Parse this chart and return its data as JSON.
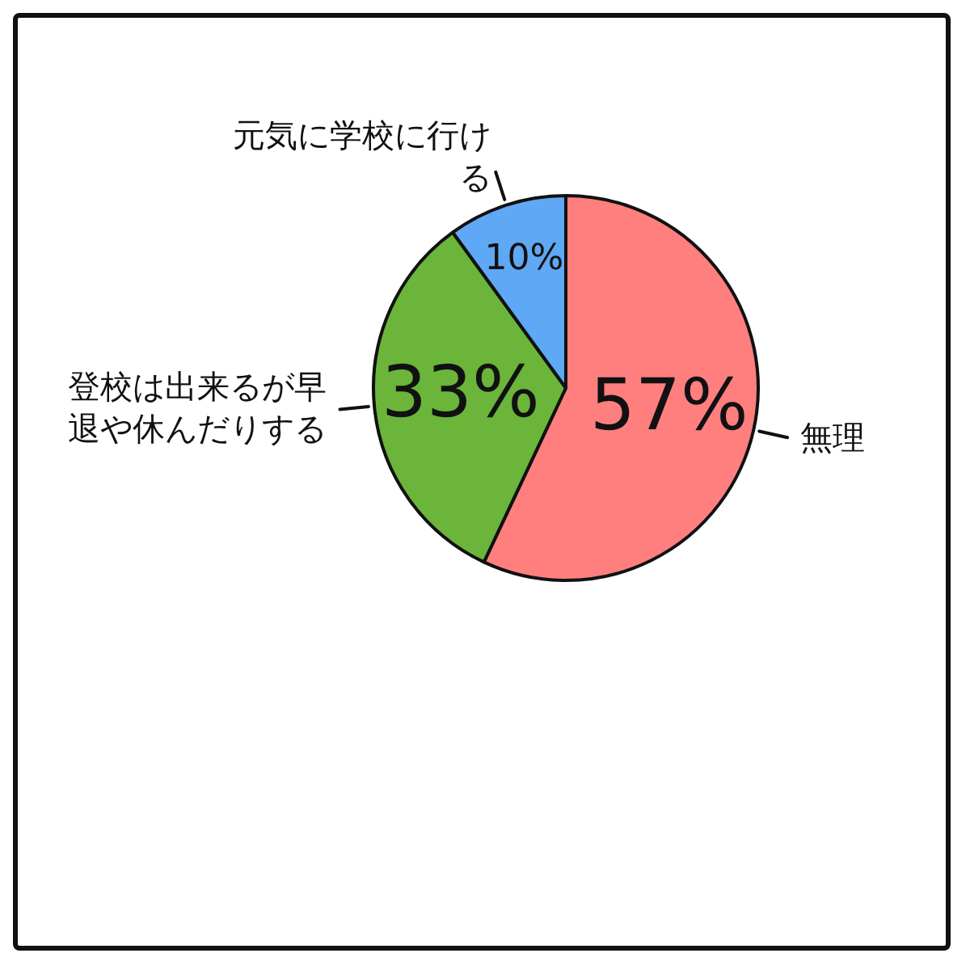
{
  "chart_data": {
    "type": "pie",
    "categories": [
      "無理",
      "登校は出来るが早退や休んだりする",
      "元気に学校に行ける"
    ],
    "values": [
      57,
      33,
      10
    ],
    "colors": [
      "#ff7f7f",
      "#6ab53a",
      "#5fa8f5"
    ],
    "value_labels": [
      "57%",
      "33%",
      "10%"
    ],
    "legend": false
  }
}
